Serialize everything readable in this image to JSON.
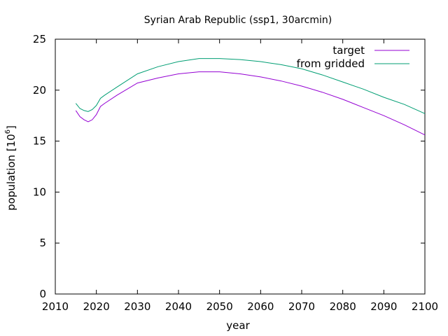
{
  "chart_data": {
    "type": "line",
    "title": "Syrian Arab Republic (ssp1, 30arcmin)",
    "xlabel": "year",
    "ylabel": "population [10",
    "ylabel_superscript": "6",
    "ylabel_suffix": "]",
    "xlim": [
      2010,
      2100
    ],
    "ylim": [
      0,
      25
    ],
    "xticks": [
      2010,
      2020,
      2030,
      2040,
      2050,
      2060,
      2070,
      2080,
      2090,
      2100
    ],
    "yticks": [
      0,
      5,
      10,
      15,
      20,
      25
    ],
    "grid": false,
    "legend_position": "top-right",
    "series": [
      {
        "name": "target",
        "color": "#9400d3",
        "x": [
          2015,
          2016,
          2017,
          2018,
          2019,
          2020,
          2021,
          2022,
          2025,
          2030,
          2035,
          2040,
          2045,
          2050,
          2055,
          2060,
          2065,
          2070,
          2075,
          2080,
          2085,
          2090,
          2095,
          2100
        ],
        "y": [
          18.0,
          17.4,
          17.1,
          16.9,
          17.1,
          17.6,
          18.4,
          18.7,
          19.5,
          20.7,
          21.2,
          21.6,
          21.8,
          21.8,
          21.6,
          21.3,
          20.9,
          20.4,
          19.8,
          19.1,
          18.3,
          17.5,
          16.6,
          15.6
        ]
      },
      {
        "name": "from gridded",
        "color": "#009e73",
        "x": [
          2015,
          2016,
          2017,
          2018,
          2019,
          2020,
          2021,
          2022,
          2025,
          2030,
          2035,
          2040,
          2045,
          2050,
          2055,
          2060,
          2065,
          2070,
          2075,
          2080,
          2085,
          2090,
          2095,
          2100
        ],
        "y": [
          18.7,
          18.2,
          18.0,
          17.9,
          18.1,
          18.5,
          19.2,
          19.5,
          20.3,
          21.6,
          22.3,
          22.8,
          23.1,
          23.1,
          23.0,
          22.8,
          22.5,
          22.1,
          21.5,
          20.8,
          20.1,
          19.3,
          18.6,
          17.7
        ]
      }
    ]
  }
}
